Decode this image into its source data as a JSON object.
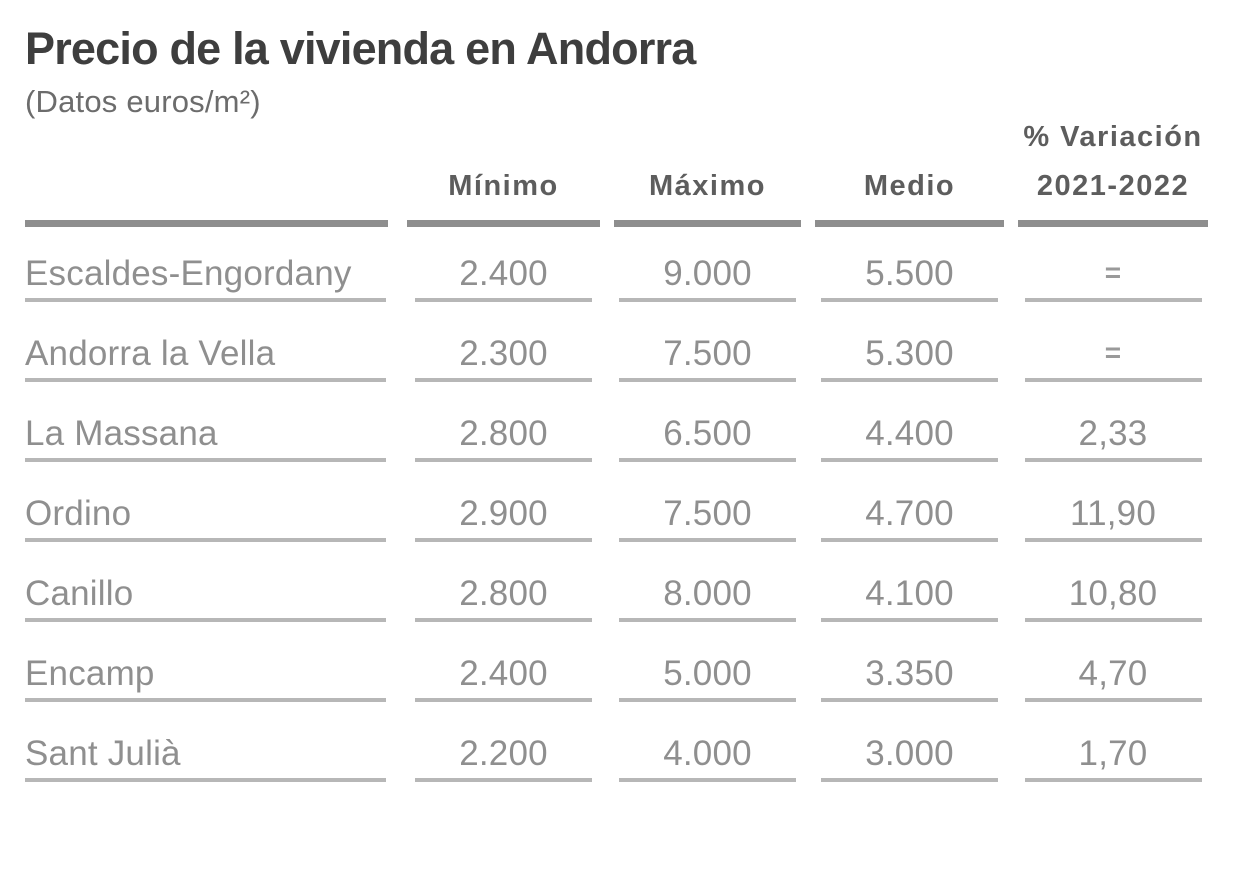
{
  "title": "Precio de la vivienda en Andorra",
  "subtitle": "(Datos euros/m²)",
  "table": {
    "header": {
      "min": "Mínimo",
      "max": "Máximo",
      "med": "Medio",
      "var_line1": "% Variación",
      "var_line2": "2021-2022"
    },
    "rows": [
      {
        "label": "Escaldes-Engordany",
        "min": "2.400",
        "max": "9.000",
        "med": "5.500",
        "var": "="
      },
      {
        "label": "Andorra la Vella",
        "min": "2.300",
        "max": "7.500",
        "med": "5.300",
        "var": "="
      },
      {
        "label": "La Massana",
        "min": "2.800",
        "max": "6.500",
        "med": "4.400",
        "var": "2,33"
      },
      {
        "label": "Ordino",
        "min": "2.900",
        "max": "7.500",
        "med": "4.700",
        "var": "11,90"
      },
      {
        "label": "Canillo",
        "min": "2.800",
        "max": "8.000",
        "med": "4.100",
        "var": "10,80"
      },
      {
        "label": "Encamp",
        "min": "2.400",
        "max": "5.000",
        "med": "3.350",
        "var": "4,70"
      },
      {
        "label": "Sant Julià",
        "min": "2.200",
        "max": "4.000",
        "med": "3.000",
        "var": "1,70"
      }
    ]
  },
  "colors": {
    "title": "#3e3e3e",
    "subtitle": "#6c6c6c",
    "header_text": "#5d5d5d",
    "cell_text": "#8f8f8f",
    "thick_rule": "#8e8e8e",
    "row_line": "#b7b7b7",
    "background": "#ffffff"
  },
  "chart_data": {
    "type": "table",
    "title": "Precio de la vivienda en Andorra",
    "subtitle": "(Datos euros/m²)",
    "units": "euros/m²",
    "columns": [
      "",
      "Mínimo",
      "Máximo",
      "Medio",
      "% Variación 2021-2022"
    ],
    "rows": [
      [
        "Escaldes-Engordany",
        2400,
        9000,
        5500,
        "="
      ],
      [
        "Andorra la Vella",
        2300,
        7500,
        5300,
        "="
      ],
      [
        "La Massana",
        2800,
        6500,
        4400,
        2.33
      ],
      [
        "Ordino",
        2900,
        7500,
        4700,
        11.9
      ],
      [
        "Canillo",
        2800,
        8000,
        4100,
        10.8
      ],
      [
        "Encamp",
        2400,
        5000,
        3350,
        4.7
      ],
      [
        "Sant Julià",
        2200,
        4000,
        3000,
        1.7
      ]
    ]
  }
}
